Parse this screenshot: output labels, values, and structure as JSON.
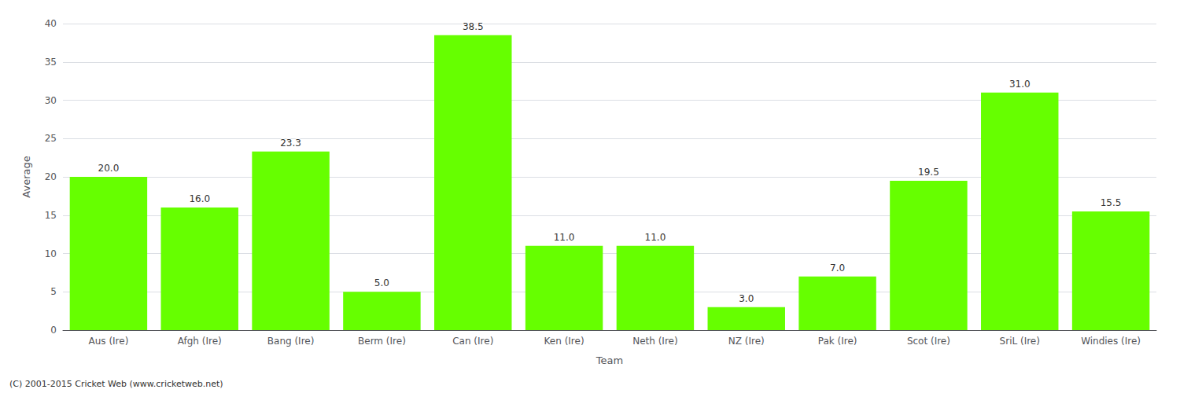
{
  "chart_data": {
    "type": "bar",
    "xlabel": "Team",
    "ylabel": "Average",
    "categories": [
      "Aus (Ire)",
      "Afgh (Ire)",
      "Bang (Ire)",
      "Berm (Ire)",
      "Can (Ire)",
      "Ken (Ire)",
      "Neth (Ire)",
      "NZ (Ire)",
      "Pak (Ire)",
      "Scot (Ire)",
      "SriL (Ire)",
      "Windies (Ire)"
    ],
    "values": [
      20.0,
      16.0,
      23.3,
      5.0,
      38.5,
      11.0,
      11.0,
      3.0,
      7.0,
      19.5,
      31.0,
      15.5
    ],
    "value_labels": [
      "20.0",
      "16.0",
      "23.3",
      "5.0",
      "38.5",
      "11.0",
      "11.0",
      "3.0",
      "7.0",
      "19.5",
      "31.0",
      "15.5"
    ],
    "data_labels": true,
    "color": "#66ff00",
    "ylim": [
      0,
      40
    ],
    "yticks": [
      0,
      5,
      10,
      15,
      20,
      25,
      30,
      35,
      40
    ],
    "grid": true,
    "annotations": [
      "(C) 2001-2015 Cricket Web (www.cricketweb.net)"
    ]
  }
}
